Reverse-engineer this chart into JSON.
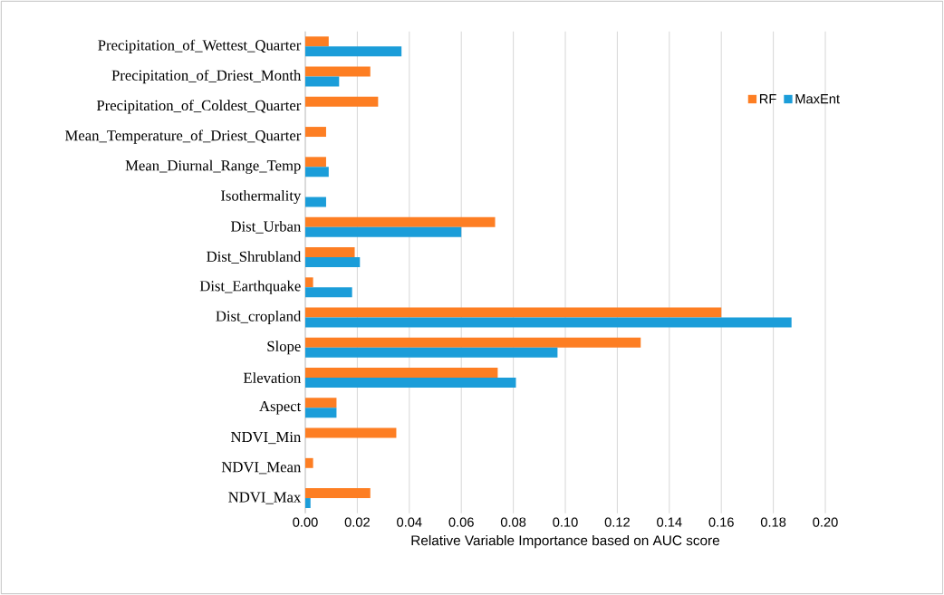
{
  "chart_data": {
    "type": "bar",
    "orientation": "horizontal",
    "categories": [
      "Precipitation_of_Wettest_Quarter",
      "Precipitation_of_Driest_Month",
      "Precipitation_of_Coldest_Quarter",
      "Mean_Temperature_of_Driest_Quarter",
      "Mean_Diurnal_Range_Temp",
      "Isothermality",
      "Dist_Urban",
      "Dist_Shrubland",
      "Dist_Earthquake",
      "Dist_cropland",
      "Slope",
      "Elevation",
      "Aspect",
      "NDVI_Min",
      "NDVI_Mean",
      "NDVI_Max"
    ],
    "series": [
      {
        "name": "RF",
        "color": "#fd7e23",
        "values": [
          0.009,
          0.025,
          0.028,
          0.008,
          0.008,
          null,
          0.073,
          0.019,
          0.003,
          0.16,
          0.129,
          0.074,
          0.012,
          0.035,
          0.003,
          0.025
        ]
      },
      {
        "name": "MaxEnt",
        "color": "#1b9dd9",
        "values": [
          0.037,
          0.013,
          null,
          null,
          0.009,
          0.008,
          0.06,
          0.021,
          0.018,
          0.187,
          0.097,
          0.081,
          0.012,
          null,
          null,
          0.002
        ]
      }
    ],
    "xlabel": "Relative Variable Importance based on AUC  score",
    "xlim": [
      0,
      0.2
    ],
    "xticks": [
      {
        "value": 0,
        "label": "0.00"
      },
      {
        "value": 0.02,
        "label": "0.02"
      },
      {
        "value": 0.04,
        "label": "0.04"
      },
      {
        "value": 0.06,
        "label": "0.06"
      },
      {
        "value": 0.08,
        "label": "0.08"
      },
      {
        "value": 0.1,
        "label": "0.10"
      },
      {
        "value": 0.12,
        "label": "0.12"
      },
      {
        "value": 0.14,
        "label": "0.14"
      },
      {
        "value": 0.16,
        "label": "0.16"
      },
      {
        "value": 0.18,
        "label": "0.18"
      },
      {
        "value": 0.2,
        "label": "0.20"
      }
    ],
    "grid": "x",
    "legend": "top right"
  }
}
